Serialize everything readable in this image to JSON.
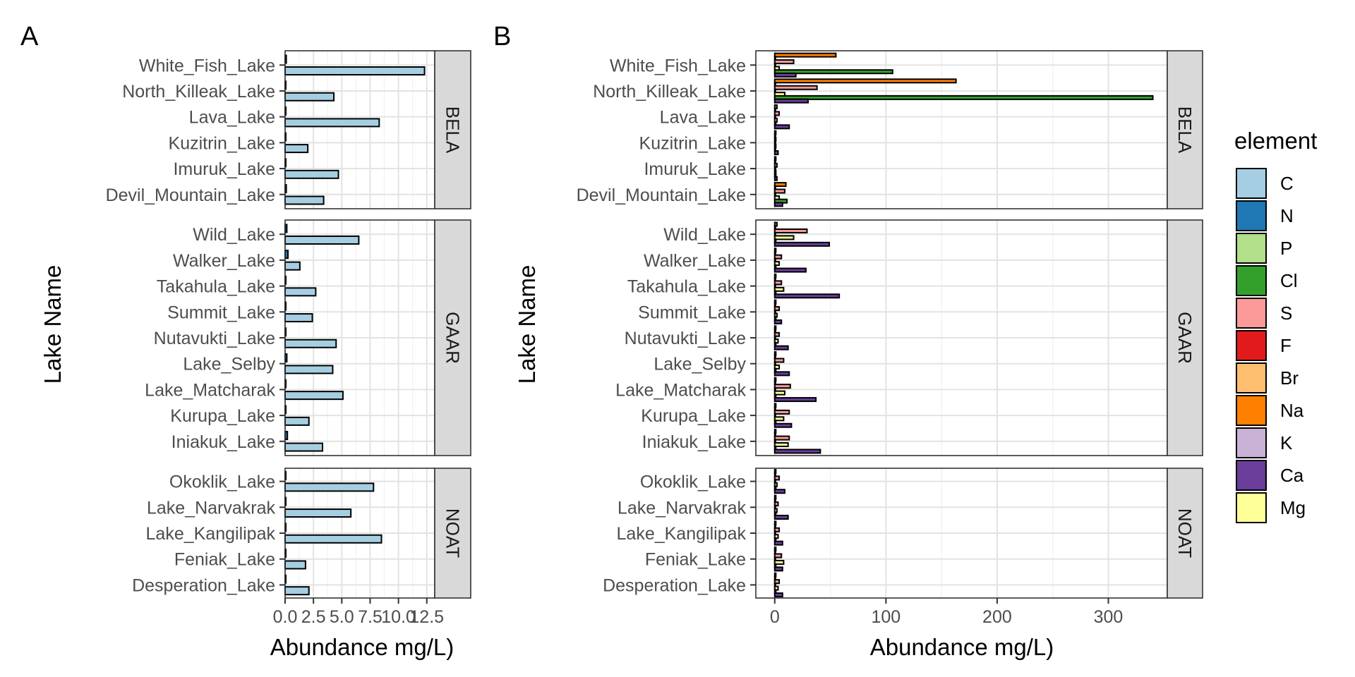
{
  "figure": {
    "panel_labels": [
      "A",
      "B"
    ],
    "ylabel": "Lake Name",
    "legend_title": "element"
  },
  "chart_data": [
    {
      "type": "bar",
      "orientation": "horizontal",
      "panel": "A",
      "xlabel": "Abundance mg/L)",
      "ylabel": "Lake Name",
      "xlim": [
        0,
        13.2
      ],
      "xticks": [
        0.0,
        2.5,
        5.0,
        7.5,
        10.0,
        12.5
      ],
      "xtick_labels": [
        "0.0",
        "2.5",
        "5.0",
        "7.5",
        "10.0",
        "12.5"
      ],
      "grid": true,
      "series_order": [
        "N",
        "C"
      ],
      "facets": [
        {
          "name": "BELA",
          "lakes": [
            {
              "name": "White_Fish_Lake",
              "values": {
                "N": 0.1,
                "C": 12.3
              }
            },
            {
              "name": "North_Killeak_Lake",
              "values": {
                "N": 0.05,
                "C": 4.3
              }
            },
            {
              "name": "Lava_Lake",
              "values": {
                "N": 0.05,
                "C": 8.3
              }
            },
            {
              "name": "Kuzitrin_Lake",
              "values": {
                "N": 0.05,
                "C": 2.0
              }
            },
            {
              "name": "Imuruk_Lake",
              "values": {
                "N": 0.05,
                "C": 4.7
              }
            },
            {
              "name": "Devil_Mountain_Lake",
              "values": {
                "N": 0.1,
                "C": 3.4
              }
            }
          ]
        },
        {
          "name": "GAAR",
          "lakes": [
            {
              "name": "Wild_Lake",
              "values": {
                "N": 0.15,
                "C": 6.5
              }
            },
            {
              "name": "Walker_Lake",
              "values": {
                "N": 0.25,
                "C": 1.3
              }
            },
            {
              "name": "Takahula_Lake",
              "values": {
                "N": 0.05,
                "C": 2.7
              }
            },
            {
              "name": "Summit_Lake",
              "values": {
                "N": 0.05,
                "C": 2.4
              }
            },
            {
              "name": "Nutavukti_Lake",
              "values": {
                "N": 0.05,
                "C": 4.5
              }
            },
            {
              "name": "Lake_Selby",
              "values": {
                "N": 0.15,
                "C": 4.2
              }
            },
            {
              "name": "Lake_Matcharak",
              "values": {
                "N": 0.05,
                "C": 5.1
              }
            },
            {
              "name": "Kurupa_Lake",
              "values": {
                "N": 0.05,
                "C": 2.1
              }
            },
            {
              "name": "Iniakuk_Lake",
              "values": {
                "N": 0.2,
                "C": 3.3
              }
            }
          ]
        },
        {
          "name": "NOAT",
          "lakes": [
            {
              "name": "Okoklik_Lake",
              "values": {
                "N": 0.05,
                "C": 7.8
              }
            },
            {
              "name": "Lake_Narvakrak",
              "values": {
                "N": 0.05,
                "C": 5.8
              }
            },
            {
              "name": "Lake_Kangilipak",
              "values": {
                "N": 0.05,
                "C": 8.5
              }
            },
            {
              "name": "Feniak_Lake",
              "values": {
                "N": 0.05,
                "C": 1.8
              }
            },
            {
              "name": "Desperation_Lake",
              "values": {
                "N": 0.05,
                "C": 2.1
              }
            }
          ]
        }
      ]
    },
    {
      "type": "bar",
      "orientation": "horizontal",
      "panel": "B",
      "xlabel": "Abundance mg/L)",
      "ylabel": "Lake Name",
      "xlim": [
        -17,
        353
      ],
      "xticks": [
        0,
        100,
        200,
        300
      ],
      "xtick_labels": [
        "0",
        "100",
        "200",
        "300"
      ],
      "grid": true,
      "series_order": [
        "Na",
        "Br",
        "S",
        "P",
        "Mg",
        "Cl",
        "Ca"
      ],
      "facets": [
        {
          "name": "BELA",
          "lakes": [
            {
              "name": "White_Fish_Lake",
              "values": {
                "Na": 55,
                "Br": 0.5,
                "S": 17,
                "P": 0.3,
                "Mg": 4,
                "Cl": 106,
                "Ca": 19
              }
            },
            {
              "name": "North_Killeak_Lake",
              "values": {
                "Na": 163,
                "Br": 0.5,
                "S": 38,
                "P": 0.3,
                "Mg": 9,
                "Cl": 340,
                "Ca": 30
              }
            },
            {
              "name": "Lava_Lake",
              "values": {
                "Na": 2,
                "Br": 0.2,
                "S": 4,
                "P": 0.2,
                "Mg": 2,
                "Cl": 1,
                "Ca": 13
              }
            },
            {
              "name": "Kuzitrin_Lake",
              "values": {
                "Na": 1,
                "Br": 0.1,
                "S": 1,
                "P": 0.1,
                "Mg": 1,
                "Cl": 0.5,
                "Ca": 3
              }
            },
            {
              "name": "Imuruk_Lake",
              "values": {
                "Na": 1,
                "Br": 0.1,
                "S": 2,
                "P": 0.1,
                "Mg": 1,
                "Cl": 1,
                "Ca": 2
              }
            },
            {
              "name": "Devil_Mountain_Lake",
              "values": {
                "Na": 10,
                "Br": 0.2,
                "S": 9,
                "P": 0.2,
                "Mg": 4,
                "Cl": 11,
                "Ca": 7
              }
            }
          ]
        },
        {
          "name": "GAAR",
          "lakes": [
            {
              "name": "Wild_Lake",
              "values": {
                "Na": 2,
                "Br": 0.2,
                "S": 29,
                "P": 0.2,
                "Mg": 17,
                "Cl": 1,
                "Ca": 49
              }
            },
            {
              "name": "Walker_Lake",
              "values": {
                "Na": 1,
                "Br": 0.1,
                "S": 6,
                "P": 0.1,
                "Mg": 4,
                "Cl": 1,
                "Ca": 28
              }
            },
            {
              "name": "Takahula_Lake",
              "values": {
                "Na": 1,
                "Br": 0.1,
                "S": 6,
                "P": 0.1,
                "Mg": 8,
                "Cl": 1,
                "Ca": 58
              }
            },
            {
              "name": "Summit_Lake",
              "values": {
                "Na": 1,
                "Br": 0.1,
                "S": 4,
                "P": 0.1,
                "Mg": 2,
                "Cl": 1,
                "Ca": 6
              }
            },
            {
              "name": "Nutavukti_Lake",
              "values": {
                "Na": 1,
                "Br": 0.1,
                "S": 4,
                "P": 0.1,
                "Mg": 3,
                "Cl": 1,
                "Ca": 12
              }
            },
            {
              "name": "Lake_Selby",
              "values": {
                "Na": 1,
                "Br": 0.1,
                "S": 8,
                "P": 0.1,
                "Mg": 4,
                "Cl": 1,
                "Ca": 13
              }
            },
            {
              "name": "Lake_Matcharak",
              "values": {
                "Na": 1,
                "Br": 0.1,
                "S": 14,
                "P": 0.1,
                "Mg": 9,
                "Cl": 1,
                "Ca": 37
              }
            },
            {
              "name": "Kurupa_Lake",
              "values": {
                "Na": 1,
                "Br": 0.1,
                "S": 13,
                "P": 0.1,
                "Mg": 8,
                "Cl": 1,
                "Ca": 15
              }
            },
            {
              "name": "Iniakuk_Lake",
              "values": {
                "Na": 1,
                "Br": 0.1,
                "S": 13,
                "P": 0.1,
                "Mg": 12,
                "Cl": 1,
                "Ca": 41
              }
            }
          ]
        },
        {
          "name": "NOAT",
          "lakes": [
            {
              "name": "Okoklik_Lake",
              "values": {
                "Na": 1,
                "Br": 0.1,
                "S": 4,
                "P": 0.1,
                "Mg": 2,
                "Cl": 1,
                "Ca": 9
              }
            },
            {
              "name": "Lake_Narvakrak",
              "values": {
                "Na": 1,
                "Br": 0.1,
                "S": 3,
                "P": 0.1,
                "Mg": 2,
                "Cl": 1,
                "Ca": 12
              }
            },
            {
              "name": "Lake_Kangilipak",
              "values": {
                "Na": 1,
                "Br": 0.1,
                "S": 4,
                "P": 0.1,
                "Mg": 3,
                "Cl": 1,
                "Ca": 7
              }
            },
            {
              "name": "Feniak_Lake",
              "values": {
                "Na": 1,
                "Br": 0.1,
                "S": 6,
                "P": 0.1,
                "Mg": 8,
                "Cl": 1,
                "Ca": 7
              }
            },
            {
              "name": "Desperation_Lake",
              "values": {
                "Na": 1,
                "Br": 0.1,
                "S": 4,
                "P": 0.1,
                "Mg": 3,
                "Cl": 1,
                "Ca": 7
              }
            }
          ]
        }
      ]
    }
  ],
  "legend": {
    "title": "element",
    "placement": "right",
    "items": [
      {
        "label": "C",
        "color": "#A6CEE3"
      },
      {
        "label": "N",
        "color": "#1F78B4"
      },
      {
        "label": "P",
        "color": "#B2DF8A"
      },
      {
        "label": "Cl",
        "color": "#33A02C"
      },
      {
        "label": "S",
        "color": "#FB9A99"
      },
      {
        "label": "F",
        "color": "#E31A1C"
      },
      {
        "label": "Br",
        "color": "#FDBF6F"
      },
      {
        "label": "Na",
        "color": "#FF7F00"
      },
      {
        "label": "K",
        "color": "#CAB2D6"
      },
      {
        "label": "Ca",
        "color": "#6A3D9A"
      },
      {
        "label": "Mg",
        "color": "#FFFF99"
      }
    ]
  }
}
